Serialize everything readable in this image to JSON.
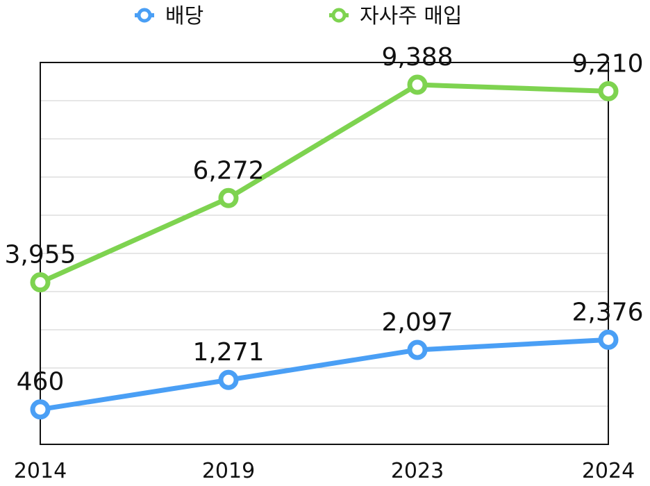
{
  "chart_data": {
    "type": "line",
    "title": "",
    "xlabel": "",
    "ylabel": "",
    "categories": [
      "2014",
      "2019",
      "2023",
      "2024"
    ],
    "ylim": [
      -500,
      10000
    ],
    "grid": true,
    "legend_position": "top-center",
    "series": [
      {
        "name": "배당",
        "color": "#4A9FF5",
        "values": [
          460,
          1271,
          2097,
          2376
        ],
        "labels": [
          "460",
          "1,271",
          "2,097",
          "2,376"
        ]
      },
      {
        "name": "자사주 매입",
        "color": "#7ED350",
        "values": [
          3955,
          6272,
          9388,
          9210
        ],
        "labels": [
          "3,955",
          "6,272",
          "9,388",
          "9,210"
        ]
      }
    ]
  }
}
